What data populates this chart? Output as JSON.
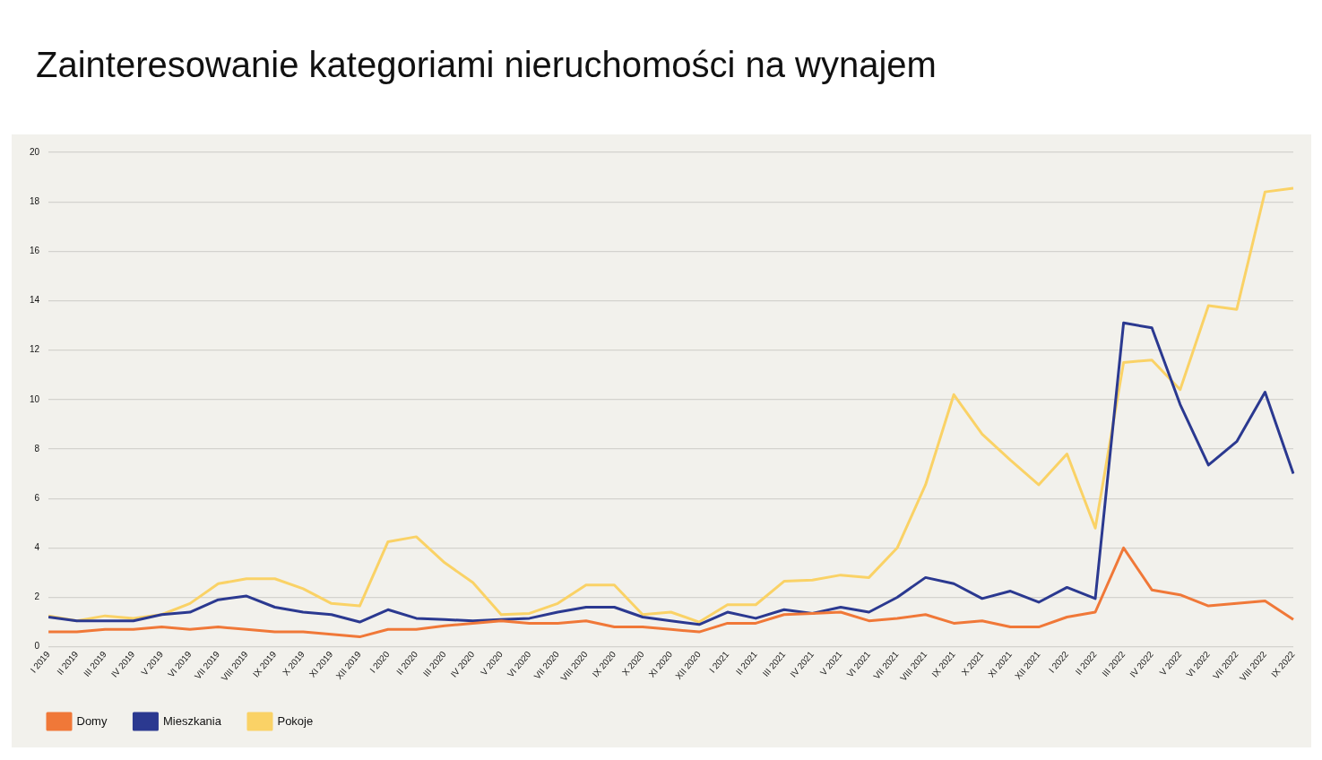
{
  "chart_data": {
    "type": "line",
    "title": "Zainteresowanie kategoriami nieruchomości na wynajem",
    "categories": [
      "I 2019",
      "II 2019",
      "III 2019",
      "IV 2019",
      "V 2019",
      "VI 2019",
      "VII 2019",
      "VIII 2019",
      "IX 2019",
      "X 2019",
      "XI 2019",
      "XII 2019",
      "I 2020",
      "II 2020",
      "III 2020",
      "IV 2020",
      "V 2020",
      "VI 2020",
      "VII 2020",
      "VIII 2020",
      "IX 2020",
      "X 2020",
      "XI 2020",
      "XII 2020",
      "I 2021",
      "II 2021",
      "III 2021",
      "IV 2021",
      "V 2021",
      "VI 2021",
      "VII 2021",
      "VIII 2021",
      "IX 2021",
      "X 2021",
      "XI 2021",
      "XII 2021",
      "I 2022",
      "II 2022",
      "III 2022",
      "IV 2022",
      "V 2022",
      "VI 2022",
      "VII 2022",
      "VIII 2022",
      "IX 2022"
    ],
    "series": [
      {
        "name": "Domy",
        "color": "#f07838",
        "values": [
          0.6,
          0.6,
          0.7,
          0.7,
          0.8,
          0.7,
          0.8,
          0.7,
          0.6,
          0.6,
          0.5,
          0.4,
          0.7,
          0.7,
          0.85,
          0.95,
          1.05,
          0.95,
          0.95,
          1.05,
          0.8,
          0.8,
          0.7,
          0.6,
          0.95,
          0.95,
          1.3,
          1.35,
          1.4,
          1.05,
          1.15,
          1.3,
          0.95,
          1.05,
          0.8,
          0.8,
          1.2,
          1.4,
          4.0,
          2.3,
          2.1,
          1.65,
          1.75,
          1.85,
          1.1
        ]
      },
      {
        "name": "Mieszkania",
        "color": "#2b3990",
        "values": [
          1.2,
          1.05,
          1.05,
          1.05,
          1.3,
          1.4,
          1.9,
          2.05,
          1.6,
          1.4,
          1.3,
          1.0,
          1.5,
          1.15,
          1.1,
          1.05,
          1.1,
          1.15,
          1.4,
          1.6,
          1.6,
          1.2,
          1.05,
          0.9,
          1.4,
          1.15,
          1.5,
          1.35,
          1.6,
          1.4,
          2.0,
          2.8,
          2.55,
          1.95,
          2.25,
          1.8,
          2.4,
          1.95,
          13.1,
          12.9,
          9.8,
          7.35,
          8.3,
          10.3,
          7.0
        ]
      },
      {
        "name": "Pokoje",
        "color": "#fad266",
        "values": [
          1.25,
          1.05,
          1.25,
          1.15,
          1.3,
          1.75,
          2.55,
          2.75,
          2.75,
          2.35,
          1.75,
          1.65,
          4.25,
          4.45,
          3.4,
          2.6,
          1.3,
          1.35,
          1.75,
          2.5,
          2.5,
          1.3,
          1.4,
          1.0,
          1.7,
          1.7,
          2.65,
          2.7,
          2.9,
          2.8,
          4.0,
          6.55,
          10.2,
          8.6,
          7.55,
          6.55,
          7.8,
          4.8,
          11.5,
          11.6,
          10.4,
          13.8,
          13.65,
          18.4,
          18.55
        ]
      }
    ],
    "ylim": [
      0,
      20
    ],
    "yticks": [
      0,
      2,
      4,
      6,
      8,
      10,
      12,
      14,
      16,
      18,
      20
    ],
    "grid": "y",
    "legend": "bottom left",
    "marker": "none",
    "line_style": "solid"
  }
}
